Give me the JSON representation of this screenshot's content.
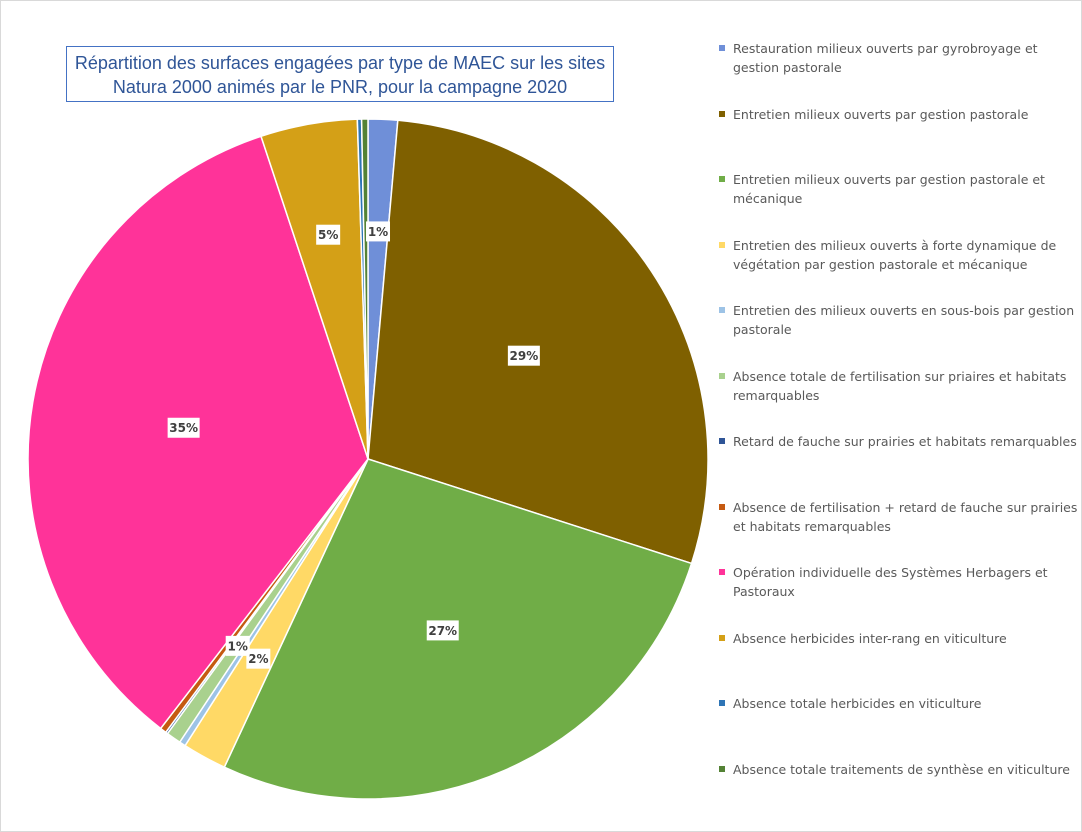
{
  "chart_data": {
    "type": "pie",
    "title": "Répartition des surfaces engagées par type de MAEC sur les sites Natura 2000 animés par le PNR, pour la campagne 2020",
    "categories": [
      "Restauration milieux ouverts par gyrobroyage et gestion pastorale",
      "Entretien milieux ouverts par gestion pastorale",
      "Entretien milieux ouverts par gestion pastorale et mécanique",
      "Entretien des milieux ouverts à forte dynamique de végétation par gestion pastorale et mécanique",
      "Entretien des milieux ouverts en sous-bois par gestion pastorale",
      "Absence totale de fertilisation sur priaires et habitats remarquables",
      "Retard de fauche sur prairies et habitats remarquables",
      "Absence de fertilisation + retard de fauche sur prairies et habitats remarquables",
      "Opération individuelle des Systèmes Herbagers et Pastoraux",
      "Absence herbicides inter-rang en viticulture",
      "Absence totale herbicides en viticulture",
      "Absence totale traitements de synthèse en viticulture"
    ],
    "values": [
      1.4,
      28.6,
      27,
      2.1,
      0.3,
      0.7,
      0.1,
      0.3,
      34.5,
      4.6,
      0.2,
      0.3
    ],
    "value_labels": [
      "1%",
      "29%",
      "27%",
      "2%",
      null,
      "1%",
      null,
      null,
      "35%",
      "5%",
      null,
      null
    ],
    "colors": [
      "#6f8fd8",
      "#7f6000",
      "#70ad47",
      "#ffd966",
      "#9dc3e6",
      "#a9d18e",
      "#2f5597",
      "#c55a11",
      "#ff3399",
      "#d4a017",
      "#2e75b6",
      "#548235"
    ],
    "legend": "right"
  }
}
